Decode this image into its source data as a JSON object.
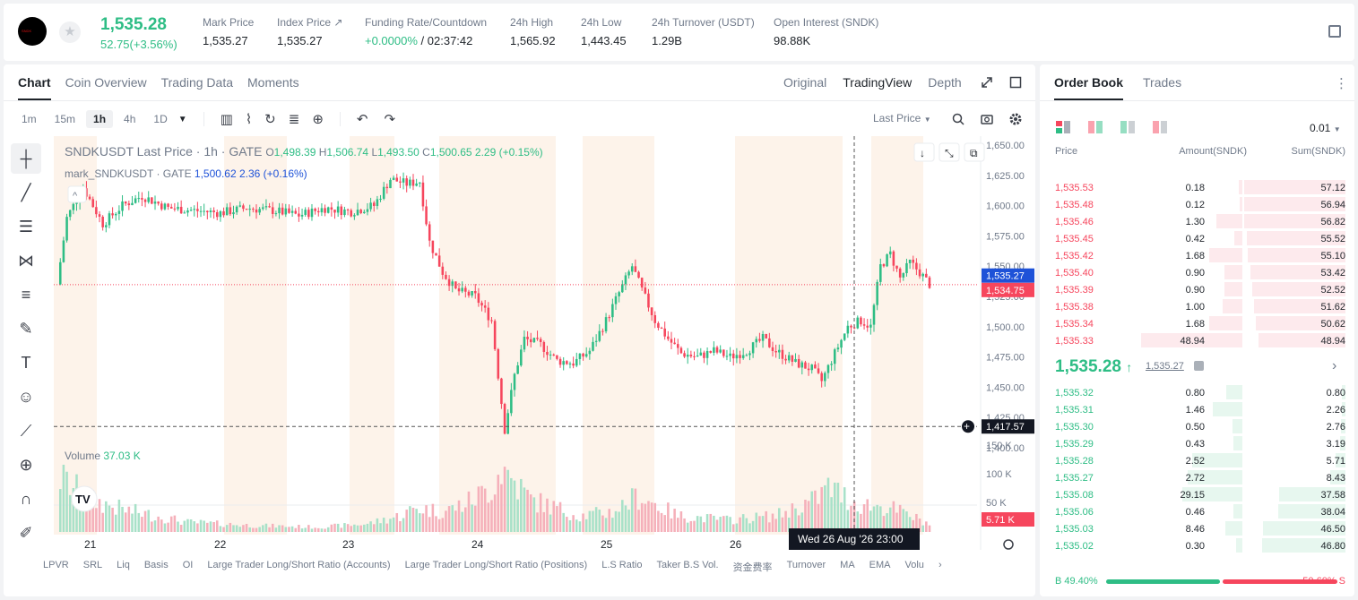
{
  "header": {
    "price": "1,535.28",
    "change": "52.75(+3.56%)",
    "logo_text": "SNDK",
    "stats": [
      {
        "label": "Mark Price",
        "value": "1,535.27"
      },
      {
        "label": "Index Price ↗",
        "value": "1,535.27"
      },
      {
        "label": "Funding Rate/Countdown",
        "value": "+0.0000%",
        "value2": "/ 02:37:42"
      },
      {
        "label": "24h High",
        "value": "1,565.92"
      },
      {
        "label": "24h Low",
        "value": "1,443.45"
      },
      {
        "label": "24h Turnover (USDT)",
        "value": "1.29B"
      },
      {
        "label": "Open Interest (SNDK)",
        "value": "98.88K"
      }
    ]
  },
  "chart_tabs": [
    "Chart",
    "Coin Overview",
    "Trading Data",
    "Moments"
  ],
  "view_tabs": [
    "Original",
    "TradingView",
    "Depth"
  ],
  "timeframes": [
    "1m",
    "15m",
    "1h",
    "4h",
    "1D"
  ],
  "last_price_select": "Last Price",
  "legend": {
    "symbol": "SNDKUSDT Last Price · 1h · GATE",
    "o_lbl": "O",
    "o": "1,498.39",
    "h_lbl": "H",
    "h": "1,506.74",
    "l_lbl": "L",
    "l": "1,493.50",
    "c_lbl": "C",
    "c": "1,500.65",
    "chg": "2.29 (+0.15%)",
    "mark": "mark_SNDKUSDT · GATE",
    "mark_val": "1,500.62",
    "mark_chg": "2.36 (+0.16%)",
    "volume_lbl": "Volume",
    "volume_val": "37.03 K"
  },
  "axis": {
    "price_ticks": [
      "1,650.00",
      "1,625.00",
      "1,600.00",
      "1,575.00",
      "1,550.00",
      "1,525.00",
      "1,500.00",
      "1,475.00",
      "1,450.00",
      "1,425.00",
      "1,400.00"
    ],
    "vol_ticks": [
      "150 K",
      "100 K",
      "50 K"
    ],
    "x_ticks": [
      "21",
      "22",
      "23",
      "24",
      "25",
      "26"
    ],
    "markers": {
      "mark_price": "1,535.27",
      "last_price": "1,534.75",
      "cursor_price": "1,417.57",
      "cursor_vol": "5.71 K",
      "cursor_time": "Wed 26 Aug '26   23:00"
    }
  },
  "bottom_indicators": [
    "LPVR",
    "SRL",
    "Liq",
    "Basis",
    "OI",
    "Large Trader Long/Short Ratio (Accounts)",
    "Large Trader Long/Short Ratio (Positions)",
    "L.S Ratio",
    "Taker B.S Vol.",
    "资金费率",
    "Turnover",
    "MA",
    "EMA",
    "Volu"
  ],
  "chart_data": {
    "type": "candlestick",
    "ylim": [
      1400,
      1650
    ],
    "price_path": [
      [
        0,
        1535
      ],
      [
        3,
        1590
      ],
      [
        8,
        1615
      ],
      [
        14,
        1585
      ],
      [
        20,
        1600
      ],
      [
        26,
        1608
      ],
      [
        34,
        1598
      ],
      [
        42,
        1596
      ],
      [
        50,
        1594
      ],
      [
        58,
        1598
      ],
      [
        66,
        1596
      ],
      [
        74,
        1592
      ],
      [
        82,
        1598
      ],
      [
        90,
        1595
      ],
      [
        97,
        1600
      ],
      [
        102,
        1622
      ],
      [
        107,
        1618
      ],
      [
        111,
        1620
      ],
      [
        114,
        1570
      ],
      [
        118,
        1545
      ],
      [
        122,
        1530
      ],
      [
        128,
        1525
      ],
      [
        133,
        1505
      ],
      [
        137,
        1415
      ],
      [
        140,
        1460
      ],
      [
        143,
        1490
      ],
      [
        148,
        1485
      ],
      [
        153,
        1472
      ],
      [
        158,
        1470
      ],
      [
        163,
        1480
      ],
      [
        168,
        1505
      ],
      [
        172,
        1528
      ],
      [
        176,
        1550
      ],
      [
        179,
        1530
      ],
      [
        183,
        1505
      ],
      [
        187,
        1490
      ],
      [
        191,
        1478
      ],
      [
        196,
        1475
      ],
      [
        201,
        1480
      ],
      [
        206,
        1475
      ],
      [
        211,
        1480
      ],
      [
        216,
        1490
      ],
      [
        220,
        1480
      ],
      [
        226,
        1470
      ],
      [
        231,
        1465
      ],
      [
        234,
        1455
      ],
      [
        238,
        1478
      ],
      [
        242,
        1500
      ],
      [
        246,
        1505
      ],
      [
        249,
        1500
      ],
      [
        252,
        1550
      ],
      [
        255,
        1560
      ],
      [
        258,
        1540
      ],
      [
        261,
        1553
      ],
      [
        264,
        1545
      ],
      [
        267,
        1535
      ]
    ],
    "volume_path": [
      [
        0,
        70
      ],
      [
        10,
        40
      ],
      [
        20,
        28
      ],
      [
        40,
        12
      ],
      [
        60,
        8
      ],
      [
        80,
        6
      ],
      [
        95,
        10
      ],
      [
        105,
        20
      ],
      [
        110,
        30
      ],
      [
        118,
        25
      ],
      [
        125,
        35
      ],
      [
        133,
        55
      ],
      [
        136,
        80
      ],
      [
        145,
        40
      ],
      [
        160,
        20
      ],
      [
        170,
        25
      ],
      [
        178,
        45
      ],
      [
        190,
        20
      ],
      [
        205,
        15
      ],
      [
        220,
        20
      ],
      [
        232,
        40
      ],
      [
        236,
        55
      ],
      [
        245,
        35
      ],
      [
        255,
        30
      ],
      [
        267,
        10
      ]
    ]
  },
  "orderbook": {
    "tabs": [
      "Order Book",
      "Trades"
    ],
    "precision": "0.01",
    "headers": [
      "Price",
      "Amount(SNDK)",
      "Sum(SNDK)"
    ],
    "asks": [
      [
        "1,535.53",
        "0.18",
        "57.12"
      ],
      [
        "1,535.48",
        "0.12",
        "56.94"
      ],
      [
        "1,535.46",
        "1.30",
        "56.82"
      ],
      [
        "1,535.45",
        "0.42",
        "55.52"
      ],
      [
        "1,535.42",
        "1.68",
        "55.10"
      ],
      [
        "1,535.40",
        "0.90",
        "53.42"
      ],
      [
        "1,535.39",
        "0.90",
        "52.52"
      ],
      [
        "1,535.38",
        "1.00",
        "51.62"
      ],
      [
        "1,535.34",
        "1.68",
        "50.62"
      ],
      [
        "1,535.33",
        "48.94",
        "48.94"
      ]
    ],
    "mid_price": "1,535.28",
    "mid_arrow": "↑",
    "mid_mark": "1,535.27",
    "bids": [
      [
        "1,535.32",
        "0.80",
        "0.80"
      ],
      [
        "1,535.31",
        "1.46",
        "2.26"
      ],
      [
        "1,535.30",
        "0.50",
        "2.76"
      ],
      [
        "1,535.29",
        "0.43",
        "3.19"
      ],
      [
        "1,535.28",
        "2.52",
        "5.71"
      ],
      [
        "1,535.27",
        "2.72",
        "8.43"
      ],
      [
        "1,535.08",
        "29.15",
        "37.58"
      ],
      [
        "1,535.06",
        "0.46",
        "38.04"
      ],
      [
        "1,535.03",
        "8.46",
        "46.50"
      ],
      [
        "1,535.02",
        "0.30",
        "46.80"
      ]
    ],
    "buy_ratio": "B 49.40%",
    "sell_ratio": "50.60% S",
    "buy_frac": 0.494
  },
  "colors": {
    "green": "#2ebd85",
    "red": "#f6465d",
    "text": "#1e2329",
    "muted": "#707a8a"
  }
}
